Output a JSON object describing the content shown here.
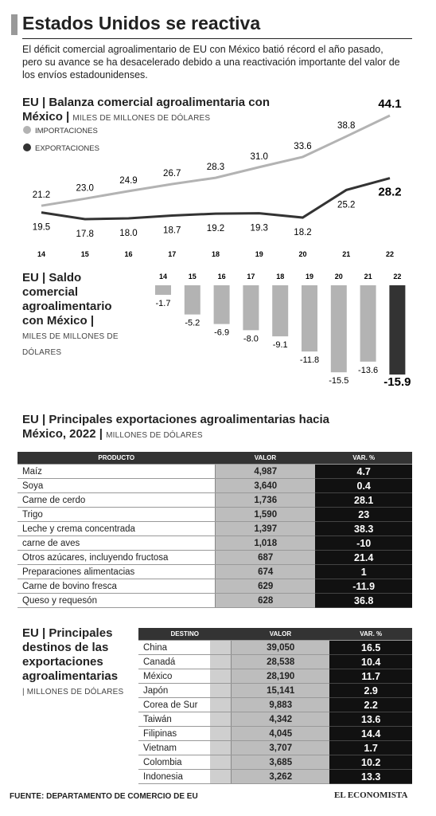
{
  "header": {
    "title": "Estados Unidos se reactiva",
    "text": "El déficit comercial agroalimentario de EU con México batió récord el año pasado, pero su avance se ha desacelerado debido a una reactivación importante del valor de los envíos estadounidenses."
  },
  "chart_data": [
    {
      "type": "line",
      "title": "EU | Balanza comercial agroalimentaria con México |",
      "unit": "MILES DE MILLONES DE DÓLARES",
      "categories": [
        "14",
        "15",
        "16",
        "17",
        "18",
        "19",
        "20",
        "21",
        "22"
      ],
      "series": [
        {
          "name": "IMPORTACIONES",
          "color": "#b3b3b3",
          "values": [
            21.2,
            23.0,
            24.9,
            26.7,
            28.3,
            31.0,
            33.6,
            38.8,
            44.1
          ],
          "value_labels": [
            "21.2",
            "23.0",
            "24.9",
            "26.7",
            "28.3",
            "31.0",
            "33.6",
            "38.8",
            "44.1"
          ]
        },
        {
          "name": "EXPORTACIONES",
          "color": "#333333",
          "values": [
            19.5,
            17.8,
            18.0,
            18.7,
            19.2,
            19.3,
            18.2,
            25.2,
            28.2
          ],
          "value_labels": [
            "19.5",
            "17.8",
            "18.0",
            "18.7",
            "19.2",
            "19.3",
            "18.2",
            "25.2",
            "28.2"
          ]
        }
      ]
    },
    {
      "type": "bar",
      "title": "EU | Saldo comercial agroalimentario con México |",
      "unit": "MILES DE MILLONES DE DÓLARES",
      "categories": [
        "14",
        "15",
        "16",
        "17",
        "18",
        "19",
        "20",
        "21",
        "22"
      ],
      "values": [
        -1.7,
        -5.2,
        -6.9,
        -8.0,
        -9.1,
        -11.8,
        -15.5,
        -13.6,
        -15.9
      ],
      "value_labels": [
        "-1.7",
        "-5.2",
        "-6.9",
        "-8.0",
        "-9.1",
        "-11.8",
        "-15.5",
        "-13.6",
        "-15.9"
      ],
      "colors": [
        "#b3b3b3",
        "#b3b3b3",
        "#b3b3b3",
        "#b3b3b3",
        "#b3b3b3",
        "#b3b3b3",
        "#b3b3b3",
        "#b3b3b3",
        "#333333"
      ]
    }
  ],
  "tables": [
    {
      "title": "EU | Principales exportaciones agroalimentarias hacia México, 2022 |",
      "unit": "MILLONES DE DÓLARES",
      "columns": [
        "PRODUCTO",
        "VALOR",
        "VAR. %"
      ],
      "rows": [
        [
          "Maíz",
          "4,987",
          "4.7"
        ],
        [
          "Soya",
          "3,640",
          "0.4"
        ],
        [
          "Carne de cerdo",
          "1,736",
          "28.1"
        ],
        [
          "Trigo",
          "1,590",
          "23"
        ],
        [
          "Leche y crema concentrada",
          "1,397",
          "38.3"
        ],
        [
          "carne de aves",
          "1,018",
          "-10"
        ],
        [
          "Otros azúcares, incluyendo fructosa",
          "687",
          "21.4"
        ],
        [
          "Preparaciones alimentacias",
          "674",
          "1"
        ],
        [
          "Carne de bovino fresca",
          "629",
          "-11.9"
        ],
        [
          "Queso y requesón",
          "628",
          "36.8"
        ]
      ]
    },
    {
      "title": "EU | Principales destinos de las exportaciones agroalimentarias",
      "unit": "| MILLONES DE DÓLARES",
      "columns": [
        "DESTINO",
        "VALOR",
        "VAR. %"
      ],
      "rows": [
        [
          "China",
          "39,050",
          "16.5"
        ],
        [
          "Canadá",
          "28,538",
          "10.4"
        ],
        [
          "México",
          "28,190",
          "11.7"
        ],
        [
          "Japón",
          "15,141",
          "2.9"
        ],
        [
          "Corea de Sur",
          "9,883",
          "2.2"
        ],
        [
          "Taiwán",
          "4,342",
          "13.6"
        ],
        [
          "Filipinas",
          "4,045",
          "14.4"
        ],
        [
          "Vietnam",
          "3,707",
          "1.7"
        ],
        [
          "Colombia",
          "3,685",
          "10.2"
        ],
        [
          "Indonesia",
          "3,262",
          "13.3"
        ]
      ]
    }
  ],
  "footer": {
    "source": "FUENTE: DEPARTAMENTO DE COMERCIO DE EU",
    "brand": "EL ECONOMISTA"
  }
}
